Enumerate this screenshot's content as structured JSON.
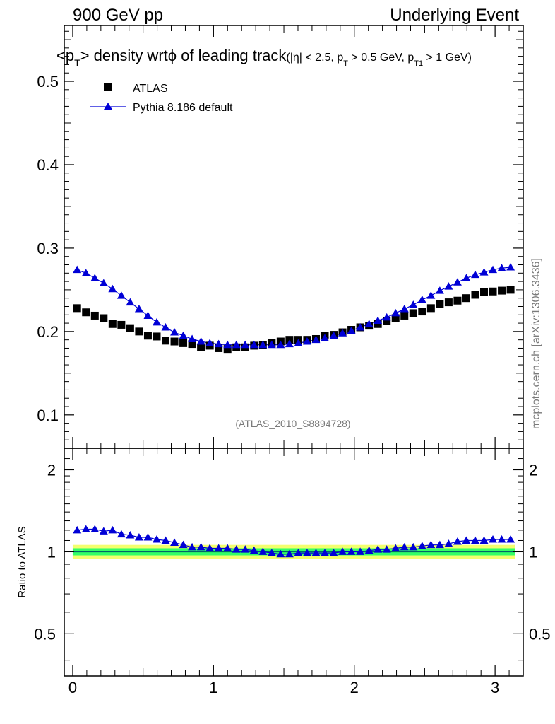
{
  "header": {
    "left": "900 GeV pp",
    "right": "Underlying Event"
  },
  "title": {
    "main_pre": "<p",
    "main_sub": "T",
    "main_post": "> density wrt",
    "phi": "ϕ",
    "main_tail": " of leading track",
    "cuts_a": "(|η| < 2.5, p",
    "cuts_sub1": "T",
    "cuts_b": " > 0.5 GeV, p",
    "cuts_sub2": "T1",
    "cuts_c": " > 1 GeV)"
  },
  "watermark": "(ATLAS_2010_S8894728)",
  "side_label": "mcplots.cern.ch [arXiv:1306.3436]",
  "ratio_ylabel": "Ratio to ATLAS",
  "colors": {
    "pythia": "#0000d6",
    "atlas": "#000000",
    "band_inner": "#33ff66",
    "band_outer": "#f3ff6e",
    "ref_line": "#006666"
  },
  "chart_data": [
    {
      "type": "scatter",
      "panel": "main",
      "xlim": [
        -0.06,
        3.2
      ],
      "ylim": [
        0.06,
        0.567
      ],
      "yticks": [
        0.1,
        0.2,
        0.3,
        0.4,
        0.5
      ],
      "ytick_labels": [
        "0.1",
        "0.2",
        "0.3",
        "0.4",
        "0.5"
      ],
      "legend_position": "top-left",
      "x": [
        0.0314,
        0.0942,
        0.1571,
        0.2199,
        0.2827,
        0.3456,
        0.4084,
        0.4712,
        0.5341,
        0.5969,
        0.6597,
        0.7226,
        0.7854,
        0.8482,
        0.9111,
        0.9739,
        1.0367,
        1.0996,
        1.1624,
        1.2252,
        1.2881,
        1.3509,
        1.4137,
        1.4765,
        1.5394,
        1.6022,
        1.665,
        1.7279,
        1.7907,
        1.8535,
        1.9164,
        1.9792,
        2.042,
        2.1049,
        2.1677,
        2.2305,
        2.2934,
        2.3562,
        2.419,
        2.4819,
        2.5447,
        2.6075,
        2.6704,
        2.7332,
        2.796,
        2.8588,
        2.9217,
        2.9845,
        3.0473,
        3.1102
      ],
      "series": [
        {
          "name": "ATLAS",
          "marker": "square",
          "values": [
            0.228,
            0.223,
            0.219,
            0.216,
            0.209,
            0.208,
            0.204,
            0.2,
            0.195,
            0.194,
            0.189,
            0.188,
            0.186,
            0.185,
            0.181,
            0.183,
            0.18,
            0.179,
            0.181,
            0.181,
            0.183,
            0.184,
            0.186,
            0.188,
            0.19,
            0.19,
            0.19,
            0.191,
            0.195,
            0.196,
            0.199,
            0.202,
            0.205,
            0.207,
            0.209,
            0.213,
            0.216,
            0.219,
            0.222,
            0.224,
            0.228,
            0.233,
            0.235,
            0.237,
            0.24,
            0.244,
            0.247,
            0.248,
            0.249,
            0.25
          ]
        },
        {
          "name": "Pythia 8.186 default",
          "marker": "triangle",
          "values": [
            0.274,
            0.27,
            0.264,
            0.258,
            0.251,
            0.243,
            0.235,
            0.227,
            0.219,
            0.211,
            0.205,
            0.199,
            0.195,
            0.191,
            0.188,
            0.186,
            0.185,
            0.184,
            0.184,
            0.184,
            0.184,
            0.184,
            0.184,
            0.184,
            0.185,
            0.186,
            0.188,
            0.19,
            0.192,
            0.195,
            0.198,
            0.201,
            0.205,
            0.209,
            0.213,
            0.217,
            0.222,
            0.227,
            0.232,
            0.238,
            0.243,
            0.249,
            0.254,
            0.259,
            0.264,
            0.268,
            0.271,
            0.274,
            0.276,
            0.277
          ]
        }
      ]
    },
    {
      "type": "scatter",
      "panel": "ratio",
      "xlim": [
        -0.06,
        3.2
      ],
      "ylim": [
        0.35,
        2.4
      ],
      "log_y": true,
      "ylabel": "Ratio to ATLAS",
      "yticks": [
        0.5,
        1,
        2
      ],
      "ytick_labels": [
        "0.5",
        "1",
        "2"
      ],
      "xticks": [
        0,
        1,
        2,
        3
      ],
      "xtick_labels": [
        "0",
        "1",
        "2",
        "3"
      ],
      "band_inner": [
        0.97,
        1.03
      ],
      "band_outer": [
        0.94,
        1.06
      ],
      "series": [
        {
          "name": "Pythia 8.186 default",
          "marker": "triangle",
          "values": [
            1.2,
            1.21,
            1.21,
            1.19,
            1.2,
            1.16,
            1.15,
            1.13,
            1.13,
            1.11,
            1.1,
            1.08,
            1.06,
            1.04,
            1.04,
            1.03,
            1.03,
            1.03,
            1.02,
            1.02,
            1.01,
            1.0,
            0.99,
            0.98,
            0.98,
            0.99,
            0.99,
            0.99,
            0.99,
            0.99,
            1.0,
            1.0,
            1.0,
            1.01,
            1.02,
            1.02,
            1.03,
            1.04,
            1.04,
            1.05,
            1.06,
            1.06,
            1.07,
            1.09,
            1.1,
            1.1,
            1.1,
            1.11,
            1.11,
            1.11
          ]
        }
      ]
    }
  ]
}
